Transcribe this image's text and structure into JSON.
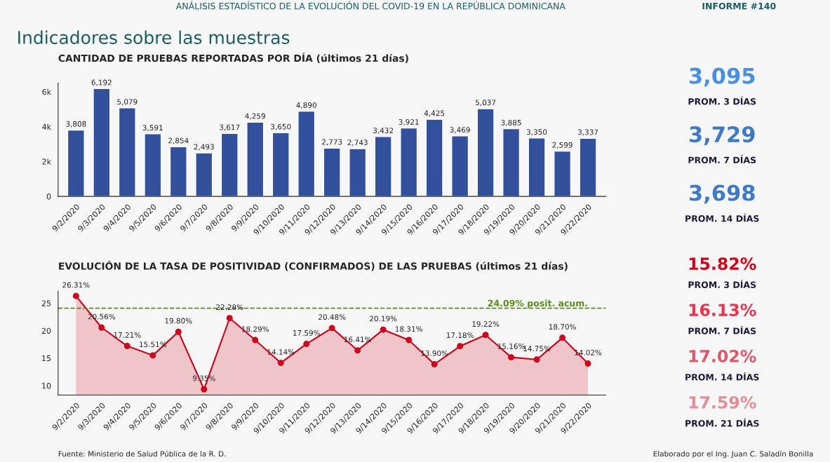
{
  "chart_data": [
    {
      "type": "other",
      "title": "Indicadores sobre las muestras",
      "annotations": [
        "ANÁLISIS ESTADÍSTICO DE LA EVOLUCIÓN DEL COVID-19 EN LA REPÚBLICA DOMINICANA",
        "INFORME #140"
      ]
    },
    {
      "type": "bar",
      "title": "CANTIDAD DE PRUEBAS REPORTADAS POR DÍA (últimos 21 días)",
      "categories": [
        "9/2/2020",
        "9/3/2020",
        "9/4/2020",
        "9/5/2020",
        "9/6/2020",
        "9/7/2020",
        "9/8/2020",
        "9/9/2020",
        "9/10/2020",
        "9/11/2020",
        "9/12/2020",
        "9/13/2020",
        "9/14/2020",
        "9/15/2020",
        "9/16/2020",
        "9/17/2020",
        "9/18/2020",
        "9/19/2020",
        "9/20/2020",
        "9/21/2020",
        "9/22/2020"
      ],
      "values": [
        3808,
        6192,
        5079,
        3591,
        2854,
        2493,
        3617,
        4259,
        3650,
        4890,
        2773,
        2743,
        3432,
        3921,
        4425,
        3469,
        5037,
        3885,
        3350,
        2599,
        3337
      ],
      "color": "#32509c",
      "value_labels": [
        "3,808",
        "6,192",
        "5,079",
        "3,591",
        "2,854",
        "2,493",
        "3,617",
        "4,259",
        "3,650",
        "4,890",
        "2,773",
        "2,743",
        "3,432",
        "3,921",
        "4,425",
        "3,469",
        "5,037",
        "3,885",
        "3,350",
        "2,599",
        "3,337"
      ],
      "ylim": [
        0,
        6500
      ],
      "yticks": [
        0,
        {
          "value": 2000,
          "label": "2k"
        },
        {
          "value": 4000,
          "label": "4k"
        },
        {
          "value": 6000,
          "label": "6k"
        }
      ],
      "grid": false
    },
    {
      "type": "other",
      "annotations": [
        "3,095",
        "PROM. 3 DÍAS",
        "3,729",
        "PROM. 7 DÍAS",
        "3,698",
        "PROM. 14 DÍAS"
      ],
      "colors": [
        "#4a90e2",
        "#1c1c3a",
        "#3f7bc4",
        "#1c1c3a",
        "#3f7bc4",
        "#1c1c3a"
      ]
    },
    {
      "type": "area",
      "title": "EVOLUCIÓN DE LA TASA DE POSITIVIDAD (CONFIRMADOS) DE LAS PRUEBAS (últimos 21 días)",
      "categories": [
        "9/2/2020",
        "9/3/2020",
        "9/4/2020",
        "9/5/2020",
        "9/6/2020",
        "9/7/2020",
        "9/8/2020",
        "9/9/2020",
        "9/10/2020",
        "9/11/2020",
        "9/12/2020",
        "9/13/2020",
        "9/14/2020",
        "9/15/2020",
        "9/16/2020",
        "9/17/2020",
        "9/18/2020",
        "9/19/2020",
        "9/20/2020",
        "9/21/2020",
        "9/22/2020"
      ],
      "values": [
        26.31,
        20.56,
        17.21,
        15.51,
        19.8,
        9.35,
        22.28,
        18.29,
        14.14,
        17.59,
        20.48,
        16.41,
        20.19,
        18.31,
        13.9,
        17.18,
        19.22,
        15.16,
        14.75,
        18.7,
        14.02
      ],
      "color": "#d0021b",
      "marker": "circle",
      "value_labels": [
        "26.31%",
        "20.56%",
        "17.21%",
        "15.51%",
        "19.80%",
        "9.35%",
        "22.28%",
        "18.29%",
        "14.14%",
        "17.59%",
        "20.48%",
        "16.41%",
        "20.19%",
        "18.31%",
        "13.90%",
        "17.18%",
        "19.22%",
        "15.16%",
        "14.75%",
        "18.70%",
        "14.02%"
      ],
      "ylim": [
        8.3,
        27.2
      ],
      "yticks": [
        10,
        15,
        20,
        25
      ],
      "grid": false,
      "ref_lines": [
        {
          "axis": "y",
          "value": 24.09,
          "label": "24.09% posit. acum.",
          "color": "#5b8c1a",
          "line_style": "dashed"
        }
      ],
      "annotations": [
        "Fuente: Ministerio de Salud Pública de la R. D.",
        "Elaborado por el Ing. Juan C. Saladín Bonilla"
      ]
    },
    {
      "type": "other",
      "annotations": [
        "15.82%",
        "PROM. 3 DÍAS",
        "16.13%",
        "PROM. 7 DÍAS",
        "17.02%",
        "PROM. 14 DÍAS",
        "17.59%",
        "PROM. 21 DÍAS"
      ],
      "colors": [
        "#d0021b",
        "#1c1c3a",
        "#e8344e",
        "#1c1c3a",
        "#e0566a",
        "#1c1c3a",
        "#e68b98",
        "#1c1c3a"
      ]
    }
  ]
}
